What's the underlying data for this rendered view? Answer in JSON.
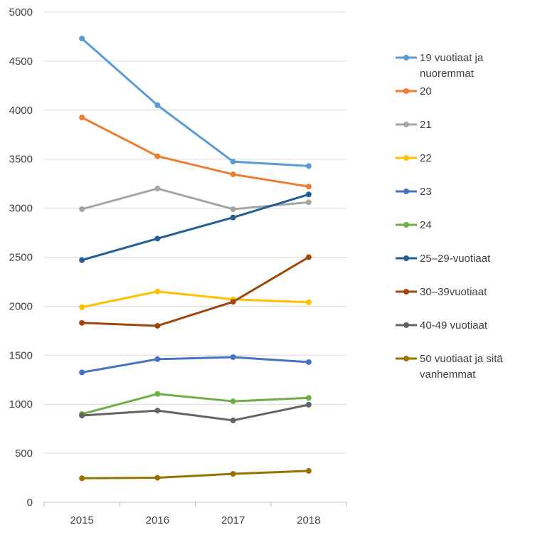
{
  "chart_data": {
    "type": "line",
    "title": "",
    "xlabel": "",
    "ylabel": "",
    "x": [
      "2015",
      "2016",
      "2017",
      "2018"
    ],
    "ylim": [
      0,
      5000
    ],
    "yticks": [
      "0",
      "500",
      "1000",
      "1500",
      "2000",
      "2500",
      "3000",
      "3500",
      "4000",
      "4500",
      "5000"
    ],
    "grid": "horizontal",
    "legend_position": "right",
    "series": [
      {
        "name": "19 vuotiaat ja nuoremmat",
        "legend_lines": [
          "19 vuotiaat ja",
          "nuoremmat"
        ],
        "color": "#5B9BD5",
        "values": [
          4730,
          4050,
          3475,
          3430
        ]
      },
      {
        "name": "20",
        "legend_lines": [
          "20"
        ],
        "color": "#ED7D31",
        "values": [
          3925,
          3530,
          3345,
          3220
        ]
      },
      {
        "name": "21",
        "legend_lines": [
          "21"
        ],
        "color": "#A5A5A5",
        "values": [
          2990,
          3200,
          2990,
          3060
        ]
      },
      {
        "name": "22",
        "legend_lines": [
          "22"
        ],
        "color": "#FFC000",
        "values": [
          1990,
          2150,
          2070,
          2040
        ]
      },
      {
        "name": "23",
        "legend_lines": [
          "23"
        ],
        "color": "#4472C4",
        "values": [
          1325,
          1460,
          1480,
          1430
        ]
      },
      {
        "name": "24",
        "legend_lines": [
          "24"
        ],
        "color": "#70AD47",
        "values": [
          900,
          1105,
          1030,
          1065
        ]
      },
      {
        "name": "25–29-vuotiaat",
        "legend_lines": [
          "25–29-vuotiaat"
        ],
        "color": "#255E91",
        "values": [
          2470,
          2690,
          2905,
          3140
        ]
      },
      {
        "name": "30–39vuotiaat",
        "legend_lines": [
          "30–39vuotiaat"
        ],
        "color": "#9E480E",
        "values": [
          1830,
          1800,
          2045,
          2500
        ]
      },
      {
        "name": "40-49 vuotiaat",
        "legend_lines": [
          "40-49 vuotiaat"
        ],
        "color": "#636363",
        "values": [
          885,
          935,
          835,
          995
        ]
      },
      {
        "name": "50 vuotiaat ja sitä vanhemmat",
        "legend_lines": [
          "50 vuotiaat ja sitä",
          "vanhemmat"
        ],
        "color": "#997300",
        "values": [
          245,
          250,
          290,
          320
        ]
      }
    ]
  }
}
